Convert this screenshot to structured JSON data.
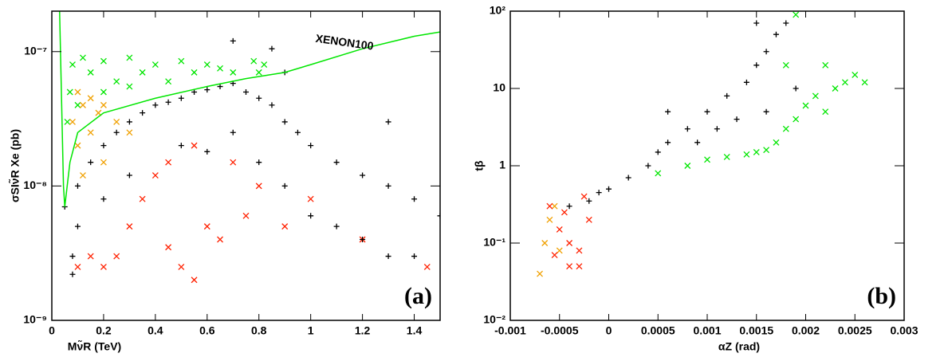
{
  "chart_data": [
    {
      "type": "scatter",
      "log_y": true,
      "y_label": "σSIν̃R Xe (pb)",
      "x_label": "Mν̃R (TeV)",
      "panel_label": "(a)",
      "annotation": "XENON100",
      "xlim": [
        0,
        1.5
      ],
      "xticks": [
        0,
        0.2,
        0.4,
        0.6,
        0.8,
        1,
        1.2,
        1.4
      ],
      "ylim": [
        1e-09,
        2e-07
      ],
      "yticks": [
        {
          "value": 1e-09,
          "label": "10⁻⁹"
        },
        {
          "value": 1e-08,
          "label": "10⁻⁸"
        },
        {
          "value": 1e-07,
          "label": "10⁻⁷"
        }
      ],
      "series": [
        {
          "marker": "x",
          "color": "#00e600",
          "x": [
            0.08,
            0.12,
            0.15,
            0.2,
            0.25,
            0.3,
            0.35,
            0.4,
            0.45,
            0.5,
            0.55,
            0.6,
            0.65,
            0.7,
            0.78,
            0.8,
            0.82,
            0.1,
            0.2,
            0.3,
            0.06,
            0.07
          ],
          "values": [
            8e-08,
            9e-08,
            7e-08,
            8.5e-08,
            6e-08,
            9e-08,
            7e-08,
            8e-08,
            6e-08,
            8.5e-08,
            7e-08,
            8e-08,
            7.5e-08,
            7e-08,
            8.5e-08,
            7e-08,
            8e-08,
            4e-08,
            5e-08,
            5.5e-08,
            3e-08,
            5e-08
          ]
        },
        {
          "marker": "x",
          "color": "#f0a000",
          "x": [
            0.08,
            0.1,
            0.12,
            0.15,
            0.18,
            0.2,
            0.25,
            0.3,
            0.12,
            0.2,
            0.1,
            0.15
          ],
          "values": [
            3e-08,
            2e-08,
            4e-08,
            2.5e-08,
            3.5e-08,
            1.5e-08,
            3e-08,
            2.5e-08,
            1.2e-08,
            4e-08,
            5e-08,
            4.5e-08
          ]
        },
        {
          "marker": "x",
          "color": "#ff2000",
          "x": [
            0.1,
            0.15,
            0.2,
            0.25,
            0.3,
            0.35,
            0.4,
            0.45,
            0.5,
            0.55,
            0.6,
            0.65,
            0.7,
            0.75,
            0.8,
            0.9,
            1.0,
            1.2,
            1.45,
            0.45,
            0.55
          ],
          "values": [
            2.5e-09,
            3e-09,
            2.5e-09,
            3e-09,
            5e-09,
            8e-09,
            1.2e-08,
            1.5e-08,
            2.5e-09,
            2e-09,
            5e-09,
            4e-09,
            1.5e-08,
            6e-09,
            1e-08,
            5e-09,
            8e-09,
            4e-09,
            2.5e-09,
            3.5e-09,
            2e-08
          ]
        },
        {
          "marker": "+",
          "color": "#000000",
          "x": [
            0.05,
            0.08,
            0.1,
            0.15,
            0.2,
            0.25,
            0.3,
            0.35,
            0.4,
            0.45,
            0.5,
            0.55,
            0.6,
            0.65,
            0.7,
            0.75,
            0.8,
            0.85,
            0.9,
            0.95,
            1.0,
            1.1,
            1.2,
            1.3,
            1.4,
            1.5,
            0.1,
            0.2,
            0.3,
            0.5,
            0.6,
            0.7,
            0.8,
            0.9,
            1.0,
            1.1,
            1.2,
            1.3,
            1.4,
            0.7,
            0.9,
            1.3,
            0.08,
            0.85
          ],
          "values": [
            7e-09,
            3e-09,
            1e-08,
            1.5e-08,
            2e-08,
            2.5e-08,
            3e-08,
            3.5e-08,
            4e-08,
            4.2e-08,
            4.5e-08,
            5e-08,
            5.2e-08,
            5.5e-08,
            5.8e-08,
            5e-08,
            4.5e-08,
            4e-08,
            3e-08,
            2.5e-08,
            2e-08,
            1.5e-08,
            1.2e-08,
            1e-08,
            8e-09,
            6e-09,
            5e-09,
            8e-09,
            1.2e-08,
            2e-08,
            1.8e-08,
            2.5e-08,
            1.5e-08,
            1e-08,
            6e-09,
            5e-09,
            4e-09,
            3e-09,
            3e-09,
            1.2e-07,
            7e-08,
            3e-08,
            2.2e-09,
            1.05e-07
          ]
        },
        {
          "type": "line",
          "color": "#00e600",
          "x": [
            0.03,
            0.045,
            0.05,
            0.07,
            0.1,
            0.2,
            0.4,
            0.6,
            0.75,
            0.9,
            1.0,
            1.2,
            1.4,
            1.5
          ],
          "values": [
            2e-07,
            1e-08,
            7e-09,
            1.5e-08,
            2.5e-08,
            3.5e-08,
            4.5e-08,
            5.5e-08,
            6.3e-08,
            7e-08,
            8e-08,
            1.05e-07,
            1.3e-07,
            1.4e-07
          ]
        }
      ]
    },
    {
      "type": "scatter",
      "log_y": true,
      "y_label": "tβ",
      "x_label": "αZ (rad)",
      "panel_label": "(b)",
      "xlim": [
        -0.001,
        0.003
      ],
      "xticks": [
        -0.001,
        -0.0005,
        0,
        0.0005,
        0.001,
        0.0015,
        0.002,
        0.0025,
        0.003
      ],
      "ylim": [
        0.01,
        100
      ],
      "yticks": [
        {
          "value": 0.01,
          "label": "10⁻²"
        },
        {
          "value": 0.1,
          "label": "10⁻¹"
        },
        1,
        10,
        {
          "value": 100,
          "label": "10²"
        }
      ],
      "series": [
        {
          "marker": "x",
          "color": "#00e600",
          "x": [
            0.001,
            0.0012,
            0.0014,
            0.0015,
            0.0016,
            0.0017,
            0.0018,
            0.0019,
            0.002,
            0.0021,
            0.0022,
            0.0023,
            0.0024,
            0.0025,
            0.0026,
            0.0019,
            0.0018,
            0.0022,
            0.0008,
            0.0005
          ],
          "values": [
            1.2,
            1.3,
            1.4,
            1.5,
            1.6,
            2,
            3,
            4,
            6,
            8,
            5,
            10,
            12,
            15,
            12,
            90,
            20,
            20,
            1,
            0.8
          ]
        },
        {
          "marker": "x",
          "color": "#f0a000",
          "x": [
            -0.0007,
            -0.00065,
            -0.0006,
            -0.00055,
            -0.0005
          ],
          "values": [
            0.04,
            0.1,
            0.2,
            0.3,
            0.08
          ]
        },
        {
          "marker": "x",
          "color": "#ff2000",
          "x": [
            -0.0006,
            -0.0005,
            -0.0004,
            -0.0003,
            -0.0002,
            -0.0004,
            -0.0003,
            -0.00055,
            -0.00045,
            -0.00025
          ],
          "values": [
            0.3,
            0.15,
            0.1,
            0.08,
            0.2,
            0.05,
            0.05,
            0.07,
            0.25,
            0.4
          ]
        },
        {
          "marker": "+",
          "color": "#000000",
          "x": [
            -0.0004,
            -0.0002,
            0,
            0.0002,
            0.0004,
            0.0005,
            0.0006,
            0.0008,
            0.001,
            0.0012,
            0.0014,
            0.0015,
            0.0016,
            0.0017,
            0.0018,
            0.0019,
            0.0015,
            0.0016,
            0.0013,
            0.0011,
            0.0009,
            0.0006,
            -0.0001
          ],
          "values": [
            0.3,
            0.35,
            0.5,
            0.7,
            1,
            1.5,
            2,
            3,
            5,
            8,
            12,
            20,
            30,
            50,
            70,
            10,
            70,
            5,
            4,
            3,
            2,
            5,
            0.45
          ]
        }
      ]
    }
  ]
}
